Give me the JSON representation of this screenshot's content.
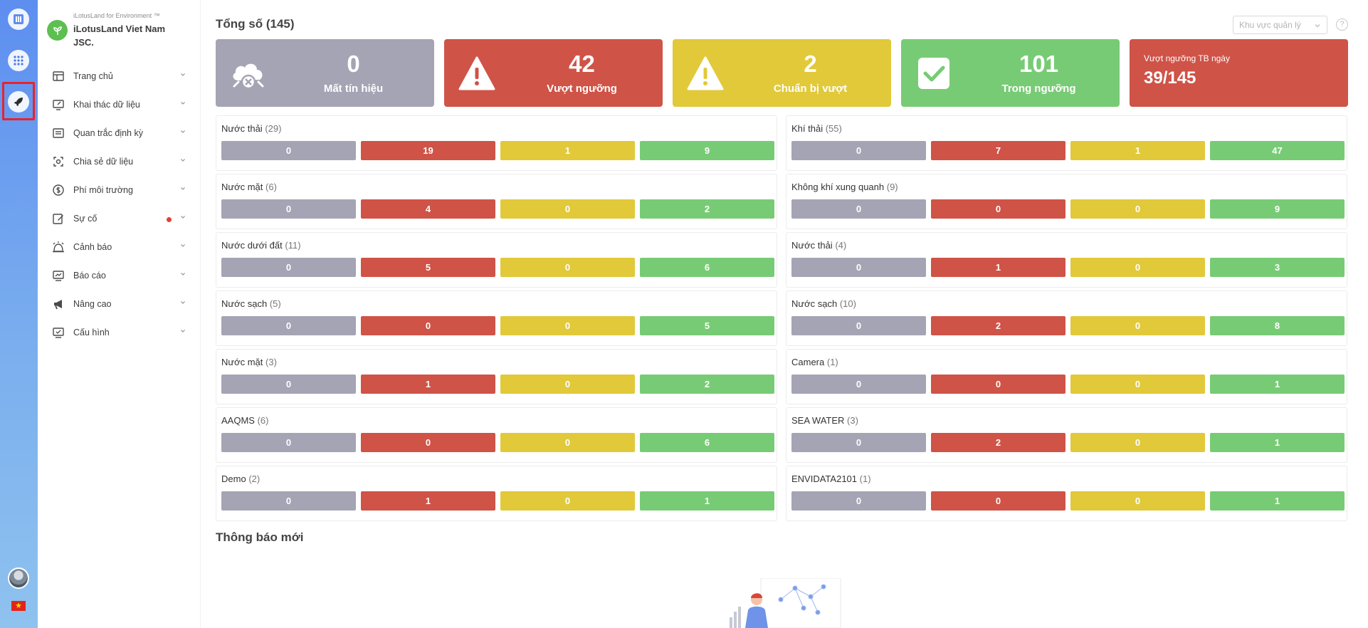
{
  "colors": {
    "gray": "#a5a4b4",
    "red": "#cf5347",
    "yellow": "#e1c93a",
    "green": "#78cb75",
    "rail": "#6ea0f0",
    "brand": "#5cbf4f"
  },
  "rail": {
    "items": [
      {
        "name": "logo-icon"
      },
      {
        "name": "apps-grid-icon"
      },
      {
        "name": "rocket-icon"
      }
    ],
    "flag": "★"
  },
  "brand": {
    "tagline": "iLotusLand for Environment ™",
    "name": "iLotusLand Viet Nam JSC."
  },
  "menu": [
    {
      "label": "Trang chủ",
      "icon": "home-icon"
    },
    {
      "label": "Khai thác dữ liệu",
      "icon": "monitor-icon"
    },
    {
      "label": "Quan trắc định kỳ",
      "icon": "document-icon"
    },
    {
      "label": "Chia sẻ dữ liệu",
      "icon": "share-icon"
    },
    {
      "label": "Phí môi trường",
      "icon": "dollar-icon"
    },
    {
      "label": "Sự cố",
      "icon": "edit-icon",
      "dot": true
    },
    {
      "label": "Cảnh báo",
      "icon": "alarm-icon"
    },
    {
      "label": "Báo cáo",
      "icon": "report-icon"
    },
    {
      "label": "Nâng cao",
      "icon": "megaphone-icon"
    },
    {
      "label": "Cấu hình",
      "icon": "config-icon"
    }
  ],
  "header": {
    "title": "Tổng số (145)",
    "region_placeholder": "Khu vực quản lý",
    "help": "?"
  },
  "summary": {
    "lost": {
      "value": "0",
      "label": "Mất tín hiệu"
    },
    "exceeded": {
      "value": "42",
      "label": "Vượt ngưỡng"
    },
    "preparing": {
      "value": "2",
      "label": "Chuẩn bị vượt"
    },
    "within": {
      "value": "101",
      "label": "Trong ngưỡng"
    },
    "avg": {
      "label": "Vượt ngưỡng TB ngày",
      "value": "39/145"
    }
  },
  "groups": [
    {
      "name": "Nước thải",
      "count": "(29)",
      "values": [
        "0",
        "19",
        "1",
        "9"
      ]
    },
    {
      "name": "Khí thải",
      "count": "(55)",
      "values": [
        "0",
        "7",
        "1",
        "47"
      ]
    },
    {
      "name": "Nước mặt",
      "count": "(6)",
      "values": [
        "0",
        "4",
        "0",
        "2"
      ]
    },
    {
      "name": "Không khí xung quanh",
      "count": "(9)",
      "values": [
        "0",
        "0",
        "0",
        "9"
      ]
    },
    {
      "name": "Nước dưới đất",
      "count": "(11)",
      "values": [
        "0",
        "5",
        "0",
        "6"
      ]
    },
    {
      "name": "Nước thải",
      "count": "(4)",
      "values": [
        "0",
        "1",
        "0",
        "3"
      ]
    },
    {
      "name": "Nước sạch",
      "count": "(5)",
      "values": [
        "0",
        "0",
        "0",
        "5"
      ]
    },
    {
      "name": "Nước sạch",
      "count": "(10)",
      "values": [
        "0",
        "2",
        "0",
        "8"
      ]
    },
    {
      "name": "Nước mặt",
      "count": "(3)",
      "values": [
        "0",
        "1",
        "0",
        "2"
      ]
    },
    {
      "name": "Camera",
      "count": "(1)",
      "values": [
        "0",
        "0",
        "0",
        "1"
      ]
    },
    {
      "name": "AAQMS",
      "count": "(6)",
      "values": [
        "0",
        "0",
        "0",
        "6"
      ]
    },
    {
      "name": "SEA WATER",
      "count": "(3)",
      "values": [
        "0",
        "2",
        "0",
        "1"
      ]
    },
    {
      "name": "Demo",
      "count": "(2)",
      "values": [
        "0",
        "1",
        "0",
        "1"
      ]
    },
    {
      "name": "ENVIDATA2101",
      "count": "(1)",
      "values": [
        "0",
        "0",
        "0",
        "1"
      ]
    }
  ],
  "notifications": {
    "title": "Thông báo mới"
  }
}
